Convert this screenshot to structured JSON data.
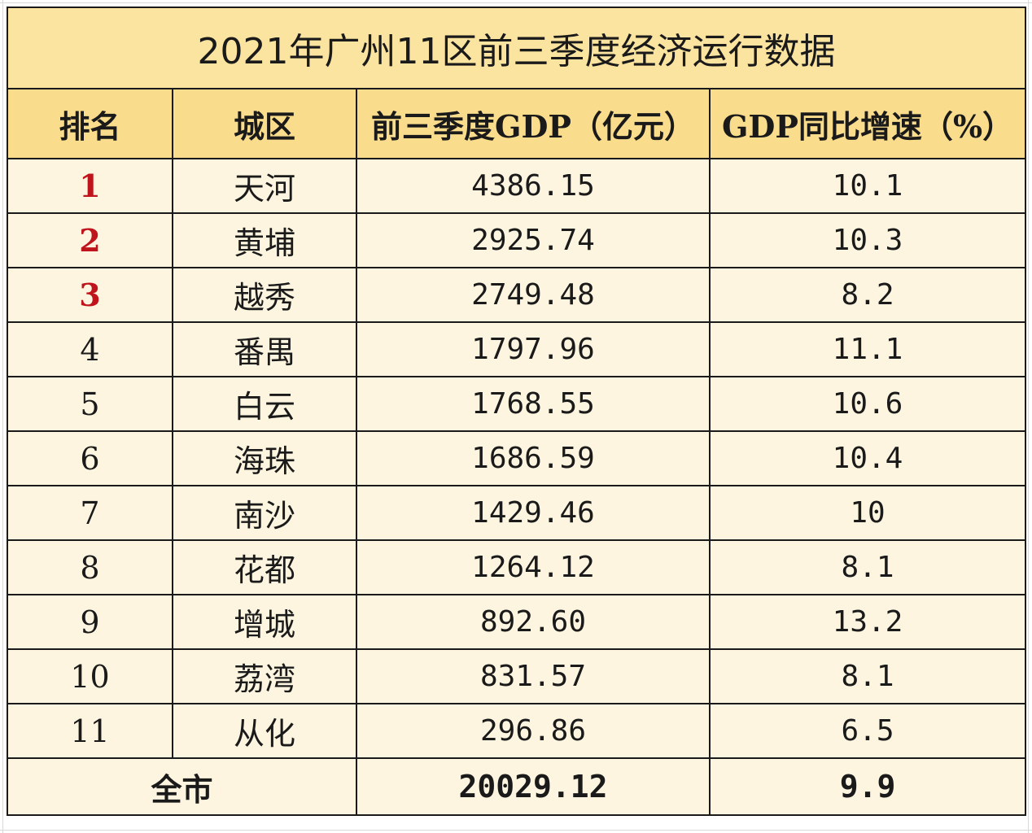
{
  "title": "2021年广州11区前三季度经济运行数据",
  "headers": {
    "rank": "排名",
    "district": "城区",
    "gdp": "前三季度GDP（亿元）",
    "growth": "GDP同比增速（%）"
  },
  "rows": [
    {
      "rank": "1",
      "district": "天河",
      "gdp": "4386.15",
      "growth": "10.1"
    },
    {
      "rank": "2",
      "district": "黄埔",
      "gdp": "2925.74",
      "growth": "10.3"
    },
    {
      "rank": "3",
      "district": "越秀",
      "gdp": "2749.48",
      "growth": "8.2"
    },
    {
      "rank": "4",
      "district": "番禺",
      "gdp": "1797.96",
      "growth": "11.1"
    },
    {
      "rank": "5",
      "district": "白云",
      "gdp": "1768.55",
      "growth": "10.6"
    },
    {
      "rank": "6",
      "district": "海珠",
      "gdp": "1686.59",
      "growth": "10.4"
    },
    {
      "rank": "7",
      "district": "南沙",
      "gdp": "1429.46",
      "growth": "10"
    },
    {
      "rank": "8",
      "district": "花都",
      "gdp": "1264.12",
      "growth": "8.1"
    },
    {
      "rank": "9",
      "district": "增城",
      "gdp": "892.60",
      "growth": "13.2"
    },
    {
      "rank": "10",
      "district": "荔湾",
      "gdp": "831.57",
      "growth": "8.1"
    },
    {
      "rank": "11",
      "district": "从化",
      "gdp": "296.86",
      "growth": "6.5"
    }
  ],
  "total": {
    "label": "全市",
    "gdp": "20029.12",
    "growth": "9.9"
  },
  "colors": {
    "title_bg": "#fbe3a0",
    "header_bg": "#f9dc8c",
    "body_bg": "#fdf5df",
    "top_rank_text": "#c0141c"
  }
}
